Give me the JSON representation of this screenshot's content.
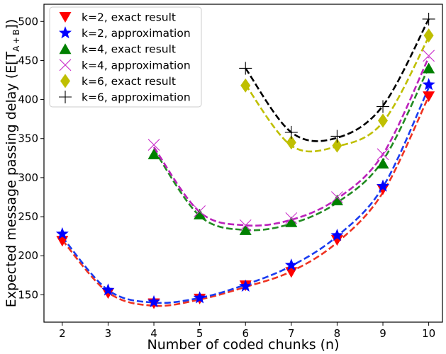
{
  "chart_data": {
    "type": "line",
    "xlabel": "Number of coded chunks (n)",
    "ylabel": "Expected message passing delay (E[T",
    "ylabel_sub": "A + B",
    "ylabel_close": "])",
    "xlim": [
      1.6,
      10.3
    ],
    "ylim": [
      115,
      522
    ],
    "xticks": [
      2,
      3,
      4,
      5,
      6,
      7,
      8,
      9,
      10
    ],
    "yticks": [
      150,
      200,
      250,
      300,
      350,
      400,
      450,
      500
    ],
    "grid": false,
    "legend_position": "top-left",
    "series": [
      {
        "name": "k=2, exact result",
        "marker": "triangle-down",
        "color": "#ff0000",
        "line_color": "#ee3322",
        "x": [
          2,
          3,
          4,
          5,
          6,
          7,
          8,
          9,
          10
        ],
        "y": [
          219,
          152,
          139,
          145,
          162,
          179,
          220,
          285,
          404
        ],
        "curve": [
          220,
          153,
          136,
          144,
          160,
          180,
          217,
          281,
          404
        ]
      },
      {
        "name": "k=2, approximation",
        "marker": "star",
        "color": "#0000ff",
        "line_color": "#1a3cf0",
        "x": [
          2,
          3,
          4,
          5,
          6,
          7,
          8,
          9,
          10
        ],
        "y": [
          228,
          156,
          141,
          146,
          161,
          188,
          226,
          289,
          419
        ],
        "curve": [
          224,
          156,
          140,
          146,
          163,
          187,
          225,
          288,
          415
        ]
      },
      {
        "name": "k=4, exact result",
        "marker": "triangle-up",
        "color": "#008000",
        "line_color": "#228b22",
        "x": [
          4,
          5,
          6,
          7,
          8,
          9,
          10
        ],
        "y": [
          330,
          253,
          233,
          243,
          271,
          318,
          440
        ],
        "curve": [
          336,
          251,
          233,
          241,
          268,
          322,
          441
        ]
      },
      {
        "name": "k=4, approximation",
        "marker": "x",
        "color": "#cc33cc",
        "line_color": "#bb22bb",
        "x": [
          4,
          5,
          6,
          7,
          8,
          9,
          10
        ],
        "y": [
          342,
          257,
          239,
          248,
          275,
          330,
          456
        ],
        "curve": [
          339,
          256,
          239,
          246,
          273,
          330,
          454
        ]
      },
      {
        "name": "k=6, exact result",
        "marker": "diamond",
        "color": "#bfbf00",
        "line_color": "#bfbf00",
        "x": [
          6,
          7,
          8,
          9,
          10
        ],
        "y": [
          418,
          345,
          341,
          373,
          482
        ],
        "curve": [
          419,
          341,
          340,
          371,
          480
        ]
      },
      {
        "name": "k=6, approximation",
        "marker": "plus",
        "color": "#000000",
        "line_color": "#000000",
        "x": [
          6,
          7,
          8,
          9,
          10
        ],
        "y": [
          440,
          358,
          353,
          391,
          503
        ],
        "curve": [
          440,
          358,
          351,
          392,
          503
        ]
      }
    ]
  }
}
